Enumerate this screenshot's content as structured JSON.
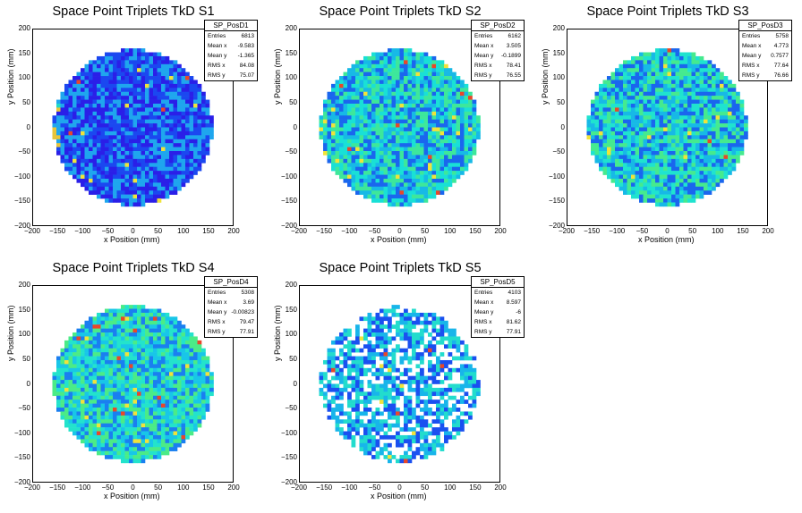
{
  "chart_data": [
    {
      "type": "heatmap",
      "title": "Space Point Triplets TkD S1",
      "xlabel": "x Position (mm)",
      "ylabel": "y Position (mm)",
      "xlim": [
        -200,
        200
      ],
      "ylim": [
        -200,
        200
      ],
      "stats": {
        "name": "SP_PosD1",
        "rows": [
          [
            "Entries",
            "6813"
          ],
          [
            "Mean x",
            "-9.583"
          ],
          [
            "Mean y",
            "-1.365"
          ],
          [
            "RMS x",
            "84.08"
          ],
          [
            "RMS y",
            "75.07"
          ]
        ]
      },
      "colors": [
        "#2a1fe8",
        "#1b48f0",
        "#1fa6ee"
      ]
    },
    {
      "type": "heatmap",
      "title": "Space Point Triplets TkD S2",
      "xlabel": "x Position (mm)",
      "ylabel": "y Position (mm)",
      "xlim": [
        -200,
        200
      ],
      "ylim": [
        -200,
        200
      ],
      "stats": {
        "name": "SP_PosD2",
        "rows": [
          [
            "Entries",
            "6162"
          ],
          [
            "Mean x",
            "3.505"
          ],
          [
            "Mean y",
            "-0.1899"
          ],
          [
            "RMS x",
            "78.41"
          ],
          [
            "RMS y",
            "76.55"
          ]
        ]
      },
      "colors": [
        "#17b9e6",
        "#19e0d6",
        "#3de79b",
        "#1a66ee"
      ]
    },
    {
      "type": "heatmap",
      "title": "Space Point Triplets TkD S3",
      "xlabel": "x Position (mm)",
      "ylabel": "y Position (mm)",
      "xlim": [
        -200,
        200
      ],
      "ylim": [
        -200,
        200
      ],
      "stats": {
        "name": "SP_PosD3",
        "rows": [
          [
            "Entries",
            "5758"
          ],
          [
            "Mean x",
            "4.773"
          ],
          [
            "Mean y",
            "0.7577"
          ],
          [
            "RMS x",
            "77.64"
          ],
          [
            "RMS y",
            "76.66"
          ]
        ]
      },
      "colors": [
        "#17b9e6",
        "#1fe3cf",
        "#45ea8f",
        "#1a66ee"
      ]
    },
    {
      "type": "heatmap",
      "title": "Space Point Triplets TkD S4",
      "xlabel": "x Position (mm)",
      "ylabel": "y Position (mm)",
      "xlim": [
        -200,
        200
      ],
      "ylim": [
        -200,
        200
      ],
      "stats": {
        "name": "SP_PosD4",
        "rows": [
          [
            "Entries",
            "5308"
          ],
          [
            "Mean x",
            "3.69"
          ],
          [
            "Mean y",
            "-0.00823"
          ],
          [
            "RMS x",
            "79.47"
          ],
          [
            "RMS y",
            "77.91"
          ]
        ]
      },
      "colors": [
        "#18c6e8",
        "#23e3cc",
        "#1a7ff0",
        "#4beb87"
      ]
    },
    {
      "type": "heatmap",
      "title": "Space Point Triplets TkD S5",
      "xlabel": "x Position (mm)",
      "ylabel": "y Position (mm)",
      "xlim": [
        -200,
        200
      ],
      "ylim": [
        -200,
        200
      ],
      "stats": {
        "name": "SP_PosD5",
        "rows": [
          [
            "Entries",
            "4103"
          ],
          [
            "Mean x",
            "8.597"
          ],
          [
            "Mean y",
            "-6"
          ],
          [
            "RMS x",
            "81.62"
          ],
          [
            "RMS y",
            "77.91"
          ]
        ]
      },
      "colors": [
        "#1a50f0",
        "#18b5ea",
        "#22dccd",
        "#ffffff"
      ]
    }
  ],
  "ticks": {
    "x": [
      "−200",
      "−150",
      "−100",
      "−50",
      "0",
      "50",
      "100",
      "150",
      "200"
    ],
    "y": [
      "200",
      "150",
      "100",
      "50",
      "0",
      "−50",
      "−100",
      "−150",
      "−200"
    ]
  }
}
